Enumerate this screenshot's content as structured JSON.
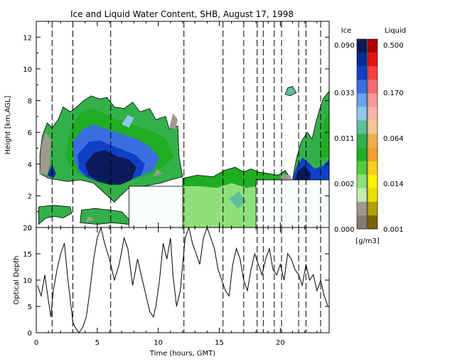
{
  "chart_data": [
    {
      "type": "heatmap",
      "title": "Ice and Liquid Water Content, SHB, August 17, 1998",
      "xlabel": "",
      "ylabel": "Height [km,AGL]",
      "xlim": [
        0,
        24
      ],
      "ylim": [
        0,
        13
      ],
      "x_ticks": [
        "0",
        "5",
        "10",
        "15",
        "20"
      ],
      "y_ticks": [
        "0",
        "2",
        "4",
        "6",
        "8",
        "10",
        "12"
      ],
      "event_lines_hours": [
        1.3,
        3.0,
        6.1,
        12.1,
        15.3,
        17.0,
        18.1,
        18.6,
        19.5,
        20.1,
        21.5,
        22.1,
        23.3
      ],
      "no_data_blocks": [
        {
          "x": [
            7.6,
            12.0
          ],
          "y": [
            0,
            2.6
          ]
        },
        {
          "x": [
            18.0,
            24.0
          ],
          "y": [
            0,
            3.0
          ]
        }
      ],
      "colorbar": {
        "ice_header": "Ice",
        "liquid_header": "Liquid",
        "units": "[g/m3]",
        "ice_labels": [
          "0.090",
          "0.033",
          "0.011",
          "0.002",
          "0.000"
        ],
        "liquid_labels": [
          "0.500",
          "0.170",
          "0.064",
          "0.014",
          "0.001"
        ],
        "ice_colors": [
          "#0c1a5a",
          "#0a2a94",
          "#1040c8",
          "#3a6ee0",
          "#6aa2ec",
          "#8fc6ee",
          "#5fbf9a",
          "#33b04a",
          "#1fae22",
          "#52cc3a",
          "#8ee07a",
          "#c2ecb2",
          "#a09a8e",
          "#8a7a6e"
        ],
        "liquid_colors": [
          "#b00000",
          "#e01515",
          "#f24040",
          "#f46e6e",
          "#f59a9a",
          "#f6b6a6",
          "#f3c890",
          "#f0b050",
          "#f0a030",
          "#f5d020",
          "#fff200",
          "#e8e000",
          "#b4a000",
          "#7a6400"
        ]
      }
    },
    {
      "type": "line",
      "xlabel": "Time (hours, GMT)",
      "ylabel": "Optical Depth",
      "xlim": [
        0,
        24
      ],
      "ylim": [
        0,
        20
      ],
      "x_ticks": [
        "0",
        "5",
        "10",
        "15",
        "20"
      ],
      "y_ticks": [
        "0",
        "5",
        "10",
        "15",
        "20"
      ],
      "series": [
        {
          "x": [
            0.1,
            0.4,
            0.7,
            1.0,
            1.2,
            1.4,
            1.7,
            2.0,
            2.3,
            2.6,
            2.9,
            3.0,
            3.2,
            3.5,
            3.8,
            4.1,
            4.4,
            4.7,
            5.0,
            5.3,
            5.6,
            6.0,
            6.4,
            6.8,
            7.2,
            7.5,
            7.9,
            8.3,
            8.7,
            9.0,
            9.3,
            9.6,
            9.8,
            10.1,
            10.4,
            10.7,
            11.0,
            11.2,
            11.5,
            11.8,
            12.0,
            12.2,
            12.5,
            12.8,
            13.1,
            13.4,
            13.7,
            14.0,
            14.3,
            14.6,
            14.9,
            15.2,
            15.5,
            15.8,
            16.1,
            16.4,
            16.7,
            17.0,
            17.3,
            17.6,
            17.9,
            18.2,
            18.5,
            18.8,
            19.1,
            19.4,
            19.7,
            20.0,
            20.3,
            20.6,
            20.9,
            21.2,
            21.5,
            21.8,
            22.1,
            22.4,
            22.7,
            23.0,
            23.3,
            23.6,
            23.9
          ],
          "y": [
            9,
            7,
            11,
            6,
            3,
            8,
            12,
            15,
            17,
            10,
            4,
            2,
            1,
            0,
            1,
            3,
            8,
            14,
            18,
            20,
            17,
            14,
            10,
            13,
            18,
            16,
            9,
            14,
            10,
            7,
            4,
            3,
            5,
            10,
            17,
            14,
            18,
            11,
            5,
            8,
            13,
            18,
            20,
            17,
            15,
            13,
            18,
            20,
            18,
            16,
            12,
            10,
            8,
            7,
            13,
            16,
            14,
            10,
            8,
            12,
            15,
            13,
            11,
            14,
            16,
            12,
            11,
            13,
            10,
            15,
            14,
            12,
            11,
            9,
            13,
            10,
            11,
            8,
            10,
            7,
            5
          ]
        }
      ]
    }
  ]
}
